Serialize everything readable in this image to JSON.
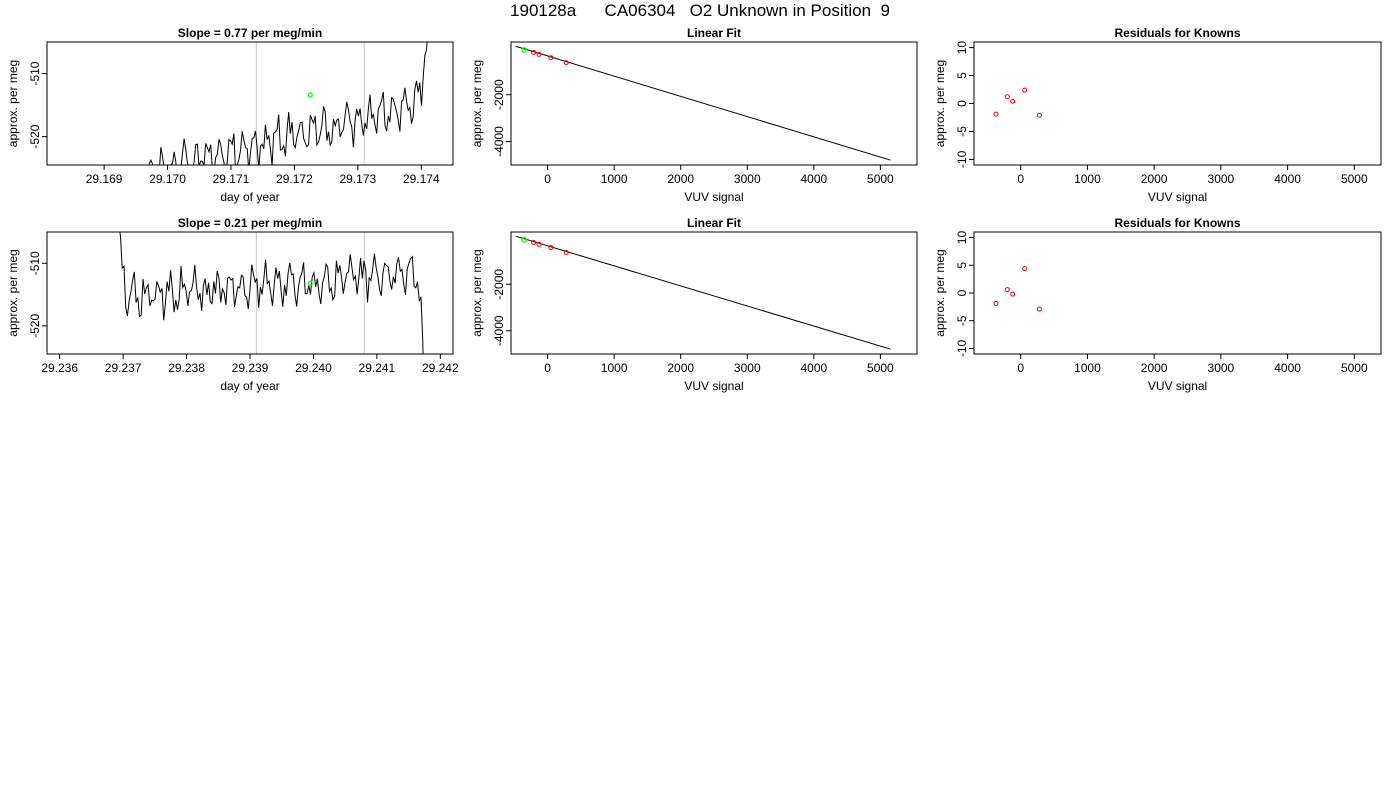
{
  "page": {
    "title": "190128a      CA06304   O2 Unknown in Position  9"
  },
  "colors": {
    "trace": "#000000",
    "marker_unknown": "#00ff00",
    "marker_known": "#ff0000",
    "vline": "#c8c8c8",
    "fit_line": "#000000"
  },
  "chart_data": [
    {
      "type": "line",
      "title": "Slope =  0.77  per meg/min",
      "xlabel": "day of year",
      "ylabel": "approx. per meg",
      "xlim": [
        29.1681,
        29.1745
      ],
      "ylim": [
        -524.5,
        -505.0
      ],
      "xticks": [
        "29.169",
        "29.170",
        "29.171",
        "29.172",
        "29.173",
        "29.174"
      ],
      "xtick_values": [
        29.169,
        29.17,
        29.171,
        29.172,
        29.173,
        29.174
      ],
      "yticks": [
        "-510",
        "-520"
      ],
      "ytick_values": [
        -510,
        -520
      ],
      "vlines": [
        29.1714,
        29.1731
      ],
      "start": 29.16945,
      "end": 29.17416,
      "trend_start": -526.0,
      "trend_end": -514.5,
      "seed": 11,
      "dip_start": true,
      "rise_end": true,
      "marker_x": 29.17225,
      "marker_y": -513.4
    },
    {
      "type": "scatter",
      "title": "Linear Fit",
      "xlabel": "VUV signal",
      "ylabel": "approx. per meg",
      "xlim": [
        -550,
        5550
      ],
      "ylim": [
        -5000,
        250
      ],
      "xticks": [
        "0",
        "1000",
        "2000",
        "3000",
        "4000",
        "5000"
      ],
      "xtick_values": [
        0,
        1000,
        2000,
        3000,
        4000,
        5000
      ],
      "yticks": [
        "-2000",
        "-4000"
      ],
      "ytick_values": [
        -2000,
        -4000
      ],
      "line": {
        "x0": -480,
        "y0": 70,
        "x1": 5150,
        "y1": -4790
      },
      "known_points": [
        {
          "x": -210,
          "y": -200
        },
        {
          "x": -130,
          "y": -280
        },
        {
          "x": 50,
          "y": -420
        },
        {
          "x": 280,
          "y": -630
        }
      ],
      "unknown_points": [
        {
          "x": -350,
          "y": -90
        }
      ]
    },
    {
      "type": "scatter",
      "title": "Residuals for Knowns",
      "xlabel": "VUV signal",
      "ylabel": "approx. per meg",
      "xlim": [
        -700,
        5400
      ],
      "ylim": [
        -11,
        11
      ],
      "xticks": [
        "0",
        "1000",
        "2000",
        "3000",
        "4000",
        "5000"
      ],
      "xtick_values": [
        0,
        1000,
        2000,
        3000,
        4000,
        5000
      ],
      "yticks": [
        "10",
        "5",
        "0",
        "-5",
        "-10"
      ],
      "ytick_values": [
        10,
        5,
        0,
        -5,
        -10
      ],
      "points": [
        {
          "x": -370,
          "y": -1.9
        },
        {
          "x": -200,
          "y": 1.2
        },
        {
          "x": -120,
          "y": 0.4
        },
        {
          "x": 60,
          "y": 2.4
        },
        {
          "x": 280,
          "y": -2.1
        }
      ]
    },
    {
      "type": "line",
      "title": "Slope =  0.21  per meg/min",
      "xlabel": "day of year",
      "ylabel": "approx. per meg",
      "xlim": [
        29.2358,
        29.2422
      ],
      "ylim": [
        -524.5,
        -505.0
      ],
      "xticks": [
        "29.236",
        "29.237",
        "29.238",
        "29.239",
        "29.240",
        "29.241",
        "29.242"
      ],
      "xtick_values": [
        29.236,
        29.237,
        29.238,
        29.239,
        29.24,
        29.241,
        29.242
      ],
      "yticks": [
        "-510",
        "-520"
      ],
      "ytick_values": [
        -510,
        -520
      ],
      "vlines": [
        29.2391,
        29.2408
      ],
      "start": 29.23685,
      "end": 29.24175,
      "trend_start": -515.5,
      "trend_end": -511.5,
      "seed": 29,
      "spike_start": true,
      "drop_end": true,
      "marker_x": 29.23995,
      "marker_y": -513.2
    },
    {
      "type": "scatter",
      "title": "Linear Fit",
      "xlabel": "VUV signal",
      "ylabel": "approx. per meg",
      "xlim": [
        -550,
        5550
      ],
      "ylim": [
        -5000,
        250
      ],
      "xticks": [
        "0",
        "1000",
        "2000",
        "3000",
        "4000",
        "5000"
      ],
      "xtick_values": [
        0,
        1000,
        2000,
        3000,
        4000,
        5000
      ],
      "yticks": [
        "-2000",
        "-4000"
      ],
      "ytick_values": [
        -2000,
        -4000
      ],
      "line": {
        "x0": -480,
        "y0": 70,
        "x1": 5150,
        "y1": -4790
      },
      "known_points": [
        {
          "x": -210,
          "y": -200
        },
        {
          "x": -130,
          "y": -280
        },
        {
          "x": 50,
          "y": -420
        },
        {
          "x": 280,
          "y": -630
        }
      ],
      "unknown_points": [
        {
          "x": -350,
          "y": -90
        }
      ]
    },
    {
      "type": "scatter",
      "title": "Residuals for Knowns",
      "xlabel": "VUV signal",
      "ylabel": "approx. per meg",
      "xlim": [
        -700,
        5400
      ],
      "ylim": [
        -11,
        11
      ],
      "xticks": [
        "0",
        "1000",
        "2000",
        "3000",
        "4000",
        "5000"
      ],
      "xtick_values": [
        0,
        1000,
        2000,
        3000,
        4000,
        5000
      ],
      "yticks": [
        "10",
        "5",
        "0",
        "-5",
        "-10"
      ],
      "ytick_values": [
        10,
        5,
        0,
        -5,
        -10
      ],
      "points": [
        {
          "x": -370,
          "y": -1.9
        },
        {
          "x": -200,
          "y": 0.6
        },
        {
          "x": -120,
          "y": -0.2
        },
        {
          "x": 60,
          "y": 4.4
        },
        {
          "x": 280,
          "y": -2.9
        }
      ]
    }
  ]
}
